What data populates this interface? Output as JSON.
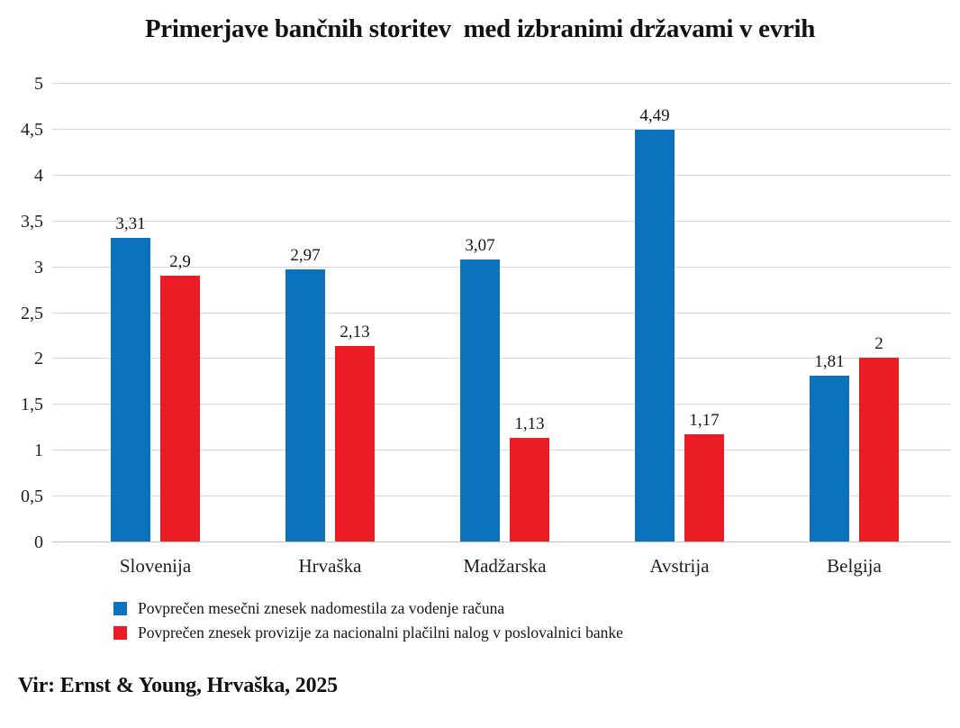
{
  "page": {
    "title": "Primerjave bančnih storitev  med izbranimi državami v evrih",
    "source": "Vir: Ernst & Young, Hrvaška, 2025"
  },
  "chart_data": {
    "type": "bar",
    "title": "Primerjave bančnih storitev med izbranimi državami v evrih",
    "categories": [
      "Slovenija",
      "Hrvaška",
      "Madžarska",
      "Avstrija",
      "Belgija"
    ],
    "series": [
      {
        "name": "Povprečen mesečni znesek nadomestila za vodenje računa",
        "color": "#0b72bc",
        "values": [
          3.31,
          2.97,
          3.07,
          4.49,
          1.81
        ],
        "labels": [
          "3,31",
          "2,97",
          "3,07",
          "4,49",
          "1,81"
        ]
      },
      {
        "name": "Povprečen znesek provizije za nacionalni plačilni nalog v poslovalnici banke",
        "color": "#ec1c24",
        "values": [
          2.9,
          2.13,
          1.13,
          1.17,
          2
        ],
        "labels": [
          "2,9",
          "2,13",
          "1,13",
          "1,17",
          "2"
        ]
      }
    ],
    "xlabel": "",
    "ylabel": "",
    "ylim": [
      0,
      5
    ],
    "yticks": [
      {
        "value": 0,
        "label": "0"
      },
      {
        "value": 0.5,
        "label": "0,5"
      },
      {
        "value": 1,
        "label": "1"
      },
      {
        "value": 1.5,
        "label": "1,5"
      },
      {
        "value": 2,
        "label": "2"
      },
      {
        "value": 2.5,
        "label": "2,5"
      },
      {
        "value": 3,
        "label": "3"
      },
      {
        "value": 3.5,
        "label": "3,5"
      },
      {
        "value": 4,
        "label": "4"
      },
      {
        "value": 4.5,
        "label": "4,5"
      },
      {
        "value": 5,
        "label": "5"
      }
    ],
    "grid": true,
    "legend_position": "bottom-left",
    "colors": {
      "blue": "#0b72bc",
      "red": "#ec1c24",
      "gridline": "#d8d8d8",
      "text": "#161616"
    },
    "source": "Vir: Ernst & Young, Hrvaška, 2025"
  }
}
